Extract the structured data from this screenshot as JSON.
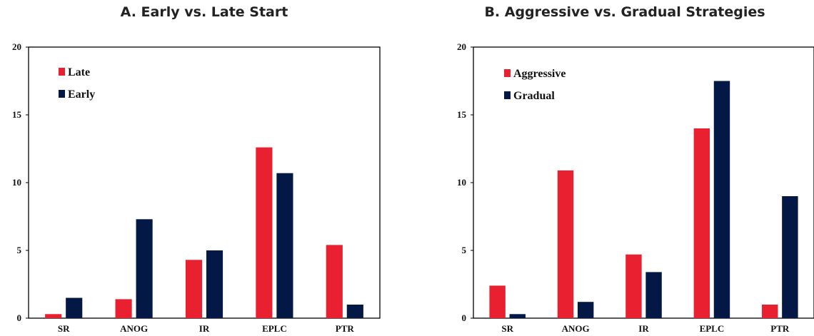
{
  "colors": {
    "series1": "#e8202f",
    "series2": "#041845"
  },
  "chart_data": [
    {
      "type": "bar",
      "title": "A. Early vs. Late Start",
      "xlabel": "",
      "ylabel": "",
      "ylim": [
        0,
        20
      ],
      "yticks": [
        0,
        5,
        10,
        15,
        20
      ],
      "grid": false,
      "legend": "top-left",
      "categories": [
        "SR",
        "ANOG",
        "IR",
        "EPLC",
        "PTR"
      ],
      "series": [
        {
          "name": "Late",
          "values": [
            0.3,
            1.4,
            4.3,
            12.6,
            5.4
          ]
        },
        {
          "name": "Early",
          "values": [
            1.5,
            7.3,
            5.0,
            10.7,
            1.0
          ]
        }
      ]
    },
    {
      "type": "bar",
      "title": "B. Aggressive vs. Gradual Strategies",
      "xlabel": "",
      "ylabel": "",
      "ylim": [
        0,
        20
      ],
      "yticks": [
        0,
        5,
        10,
        15,
        20
      ],
      "grid": false,
      "legend": "top-left",
      "categories": [
        "SR",
        "ANOG",
        "IR",
        "EPLC",
        "PTR"
      ],
      "series": [
        {
          "name": "Aggressive",
          "values": [
            2.4,
            10.9,
            4.7,
            14.0,
            1.0
          ]
        },
        {
          "name": "Gradual",
          "values": [
            0.3,
            1.2,
            3.4,
            17.5,
            9.0
          ]
        }
      ]
    }
  ]
}
